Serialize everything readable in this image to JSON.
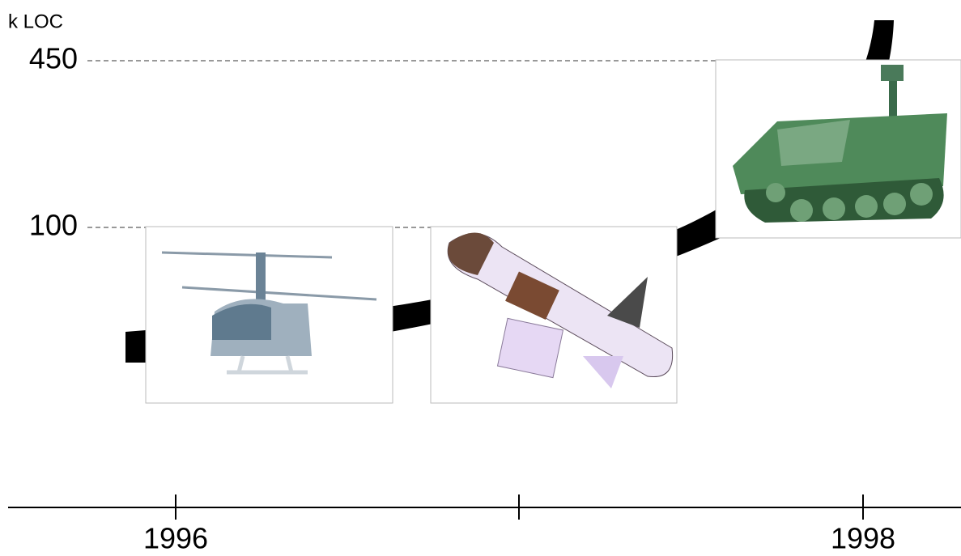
{
  "y_axis": {
    "label": "k LOC",
    "ticks": [
      "450",
      "100"
    ]
  },
  "x_axis": {
    "ticks": [
      "1996",
      "1998"
    ]
  }
}
